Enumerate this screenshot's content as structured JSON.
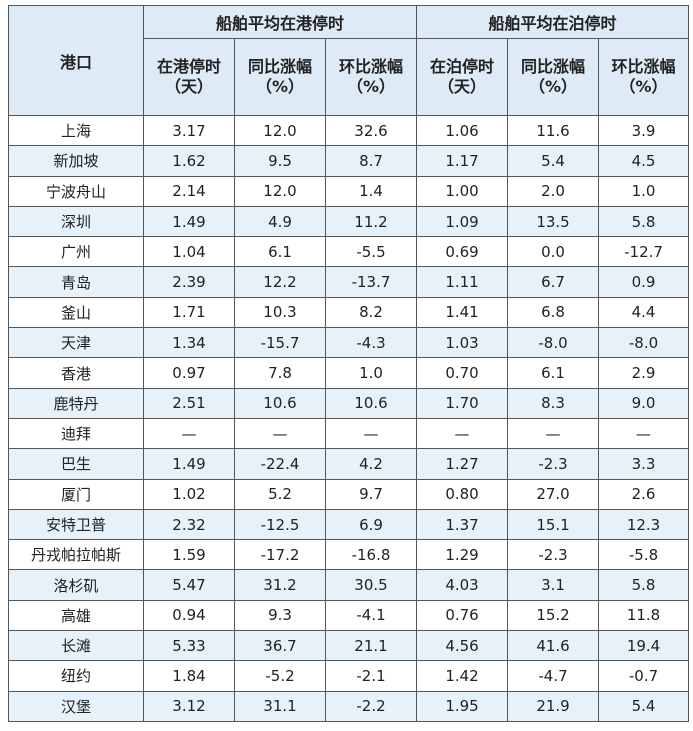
{
  "table": {
    "corner": "港口",
    "groups": [
      "船舶平均在港停时",
      "船舶平均在泊停时"
    ],
    "columns": [
      [
        "在港停时",
        "（天）"
      ],
      [
        "同比涨幅",
        "（%）"
      ],
      [
        "环比涨幅",
        "（%）"
      ],
      [
        "在泊停时",
        "（天）"
      ],
      [
        "同比涨幅",
        "（%）"
      ],
      [
        "环比涨幅",
        "（%）"
      ]
    ],
    "rows": [
      [
        "上海",
        "3.17",
        "12.0",
        "32.6",
        "1.06",
        "11.6",
        "3.9"
      ],
      [
        "新加坡",
        "1.62",
        "9.5",
        "8.7",
        "1.17",
        "5.4",
        "4.5"
      ],
      [
        "宁波舟山",
        "2.14",
        "12.0",
        "1.4",
        "1.00",
        "2.0",
        "1.0"
      ],
      [
        "深圳",
        "1.49",
        "4.9",
        "11.2",
        "1.09",
        "13.5",
        "5.8"
      ],
      [
        "广州",
        "1.04",
        "6.1",
        "-5.5",
        "0.69",
        "0.0",
        "-12.7"
      ],
      [
        "青岛",
        "2.39",
        "12.2",
        "-13.7",
        "1.11",
        "6.7",
        "0.9"
      ],
      [
        "釜山",
        "1.71",
        "10.3",
        "8.2",
        "1.41",
        "6.8",
        "4.4"
      ],
      [
        "天津",
        "1.34",
        "-15.7",
        "-4.3",
        "1.03",
        "-8.0",
        "-8.0"
      ],
      [
        "香港",
        "0.97",
        "7.8",
        "1.0",
        "0.70",
        "6.1",
        "2.9"
      ],
      [
        "鹿特丹",
        "2.51",
        "10.6",
        "10.6",
        "1.70",
        "8.3",
        "9.0"
      ],
      [
        "迪拜",
        "—",
        "—",
        "—",
        "—",
        "—",
        "—"
      ],
      [
        "巴生",
        "1.49",
        "-22.4",
        "4.2",
        "1.27",
        "-2.3",
        "3.3"
      ],
      [
        "厦门",
        "1.02",
        "5.2",
        "9.7",
        "0.80",
        "27.0",
        "2.6"
      ],
      [
        "安特卫普",
        "2.32",
        "-12.5",
        "6.9",
        "1.37",
        "15.1",
        "12.3"
      ],
      [
        "丹戎帕拉帕斯",
        "1.59",
        "-17.2",
        "-16.8",
        "1.29",
        "-2.3",
        "-5.8"
      ],
      [
        "洛杉矶",
        "5.47",
        "31.2",
        "30.5",
        "4.03",
        "3.1",
        "5.8"
      ],
      [
        "高雄",
        "0.94",
        "9.3",
        "-4.1",
        "0.76",
        "15.2",
        "11.8"
      ],
      [
        "长滩",
        "5.33",
        "36.7",
        "21.1",
        "4.56",
        "41.6",
        "19.4"
      ],
      [
        "纽约",
        "1.84",
        "-5.2",
        "-2.1",
        "1.42",
        "-4.7",
        "-0.7"
      ],
      [
        "汉堡",
        "3.12",
        "31.1",
        "-2.2",
        "1.95",
        "21.9",
        "5.4"
      ]
    ]
  }
}
